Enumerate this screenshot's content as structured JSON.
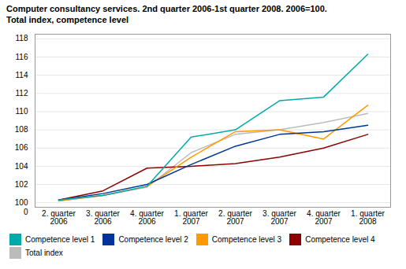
{
  "chart_data": {
    "type": "line",
    "title": "Computer consultancy services. 2nd quarter 2006-1st quarter 2008. 2006=100.\nTotal index, competence level",
    "categories": [
      "2. quarter\n2006",
      "3. quarter\n2006",
      "4. quarter\n2006",
      "1. quarter\n2007",
      "2. quarter\n2007",
      "3. quarter\n2007",
      "4. quarter\n2007",
      "1. quarter\n2008"
    ],
    "series": [
      {
        "name": "Competence level 1",
        "color": "#00AAAA",
        "values": [
          100.3,
          100.8,
          101.8,
          107.2,
          108.0,
          111.2,
          111.6,
          116.3
        ]
      },
      {
        "name": "Competence level 2",
        "color": "#003399",
        "values": [
          100.3,
          101.0,
          102.0,
          104.2,
          106.2,
          107.5,
          107.8,
          108.5
        ]
      },
      {
        "name": "Competence level 3",
        "color": "#FF9900",
        "values": [
          100.2,
          100.8,
          101.8,
          105.0,
          107.8,
          108.0,
          107.0,
          110.7
        ]
      },
      {
        "name": "Competence level 4",
        "color": "#8B0000",
        "values": [
          100.3,
          101.3,
          103.8,
          104.0,
          104.3,
          105.0,
          106.0,
          107.5
        ]
      },
      {
        "name": "Total index",
        "color": "#BBBBBB",
        "values": [
          100.2,
          100.8,
          101.7,
          105.5,
          107.5,
          108.0,
          108.8,
          109.8
        ]
      }
    ],
    "ylim": [
      99.5,
      118.5
    ],
    "yticks": [
      100,
      102,
      104,
      106,
      108,
      110,
      112,
      114,
      116,
      118
    ],
    "grid": true,
    "legend": "bottom",
    "annotations": [
      "0"
    ]
  }
}
